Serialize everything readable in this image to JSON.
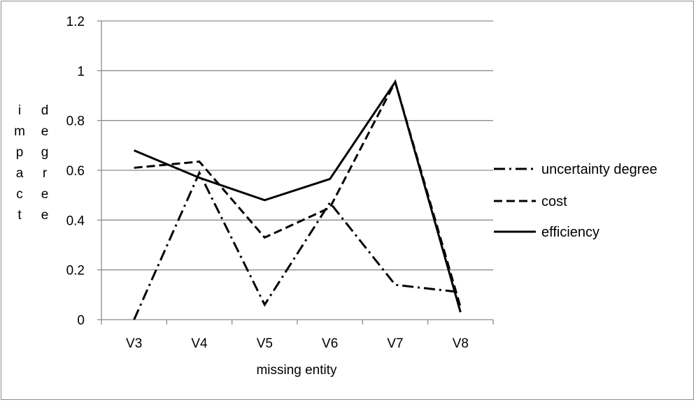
{
  "chart_data": {
    "type": "line",
    "categories": [
      "V3",
      "V4",
      "V5",
      "V6",
      "V7",
      "V8"
    ],
    "xlabel": "missing entity",
    "ylabel_columns": [
      "impact",
      "degree"
    ],
    "ylim": [
      0,
      1.2
    ],
    "yticks": [
      0,
      0.2,
      0.4,
      0.6,
      0.8,
      1,
      1.2
    ],
    "ytick_labels": [
      "0",
      "0.2",
      "0.4",
      "0.6",
      "0.8",
      "1",
      "1.2"
    ],
    "grid": "horizontal",
    "legend_position": "right",
    "series": [
      {
        "name": "uncertainty degree",
        "style": "dash-dot",
        "values": [
          0.0,
          0.59,
          0.06,
          0.47,
          0.14,
          0.11
        ]
      },
      {
        "name": "cost",
        "style": "dashed",
        "values": [
          0.61,
          0.635,
          0.33,
          0.45,
          0.955,
          0.05
        ]
      },
      {
        "name": "efficiency",
        "style": "solid",
        "values": [
          0.68,
          0.57,
          0.48,
          0.565,
          0.955,
          0.03
        ]
      }
    ]
  },
  "colors": {
    "line": "#000000",
    "grid": "#8c8c8c",
    "background": "#ffffff"
  }
}
